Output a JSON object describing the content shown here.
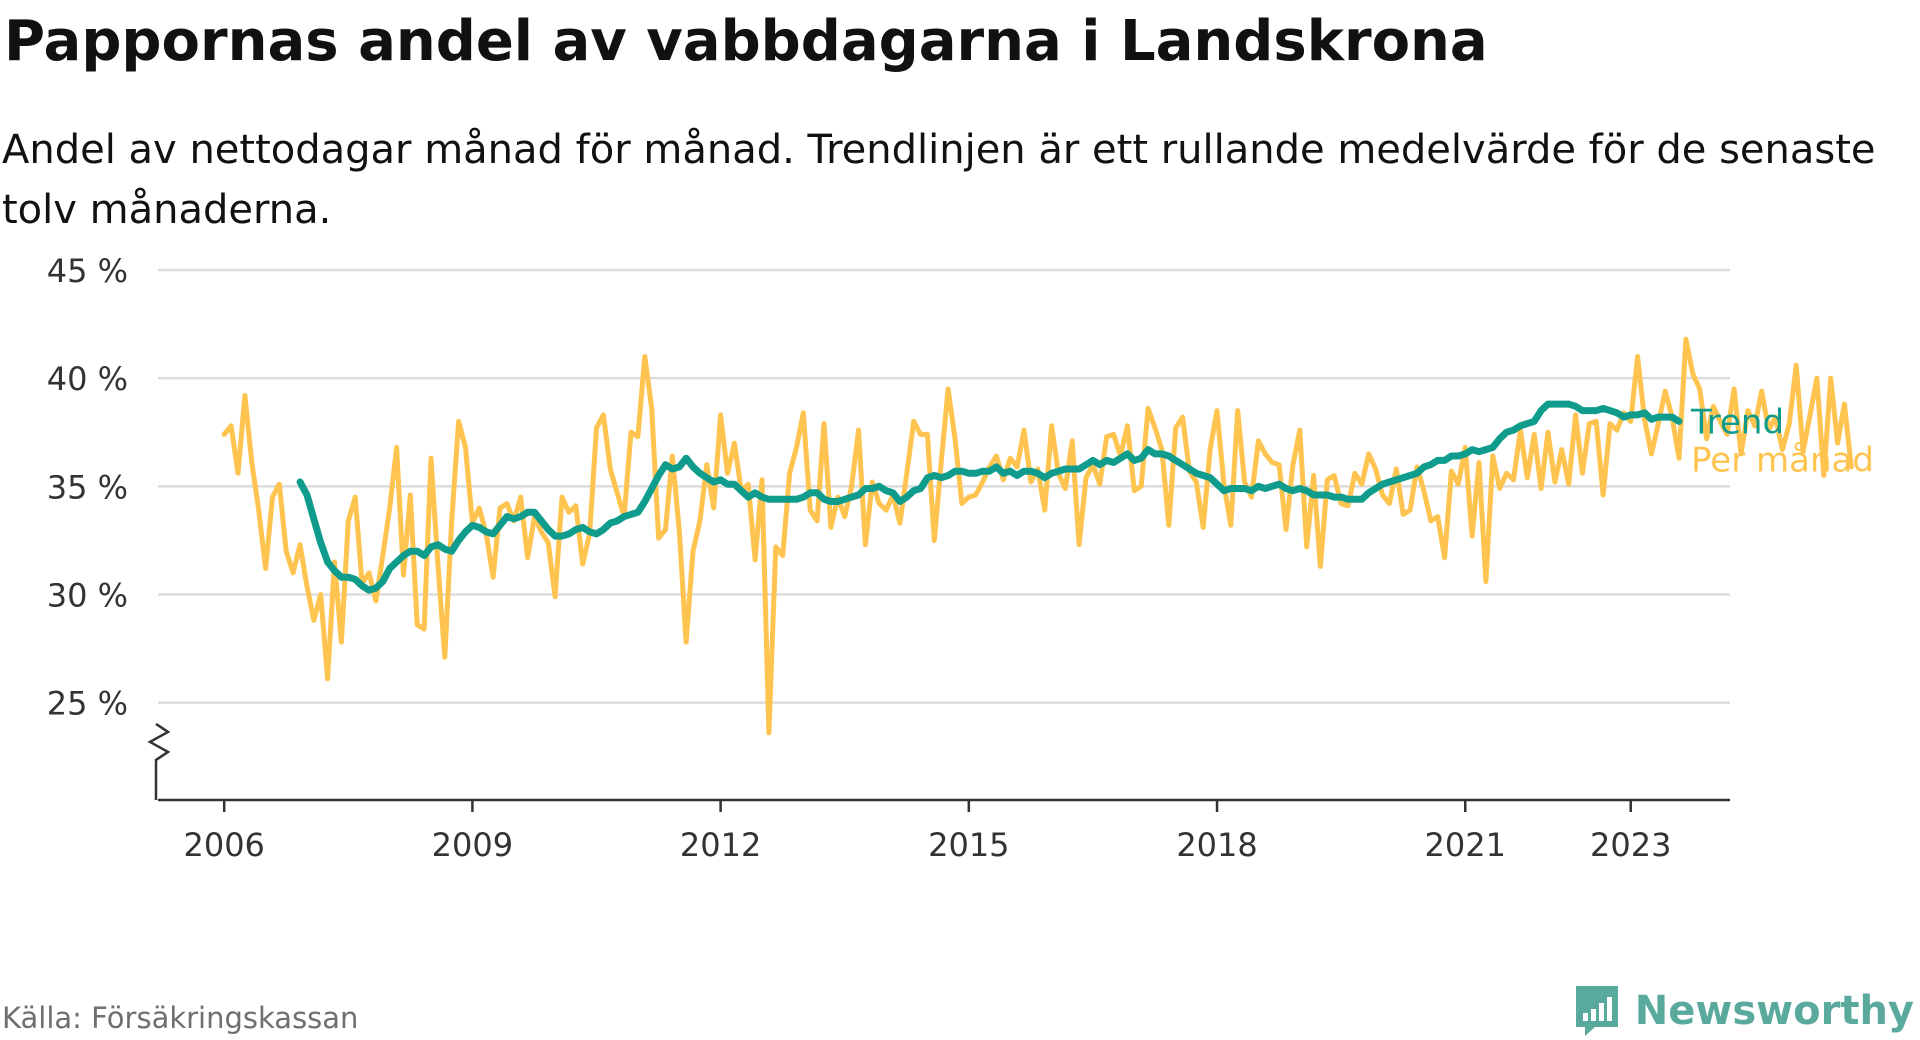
{
  "title": "Pappornas andel av vabbdagarna i Landskrona",
  "subtitle": "Andel av nettodagar månad för månad. Trendlinjen är ett rullande medelvärde för de senaste tolv månaderna.",
  "source": "Källa: Försäkringskassan",
  "brand": {
    "name": "Newsworthy",
    "icon": "bar-chart-speech-bubble-icon",
    "color": "#5aa99d"
  },
  "colors": {
    "trend": "#109c8c",
    "monthly": "#ffc44f",
    "grid": "#dddddd",
    "axis": "#333333",
    "text": "#333333"
  },
  "chart_data": {
    "type": "line",
    "x_unit": "year (decimal)",
    "ylim": [
      20.5,
      45
    ],
    "xlim": [
      2005.2,
      2024.2
    ],
    "y_ticks": [
      {
        "value": 25,
        "label": "25 %"
      },
      {
        "value": 30,
        "label": "30 %"
      },
      {
        "value": 35,
        "label": "35 %"
      },
      {
        "value": 40,
        "label": "40 %"
      },
      {
        "value": 45,
        "label": "45 %"
      }
    ],
    "x_ticks": [
      {
        "value": 2006,
        "label": "2006"
      },
      {
        "value": 2009,
        "label": "2009"
      },
      {
        "value": 2012,
        "label": "2012"
      },
      {
        "value": 2015,
        "label": "2015"
      },
      {
        "value": 2018,
        "label": "2018"
      },
      {
        "value": 2021,
        "label": "2021"
      },
      {
        "value": 2023,
        "label": "2023"
      }
    ],
    "axis_break": true,
    "grid": "horizontal",
    "legend": "end-of-line labels",
    "series": [
      {
        "name": "Per månad",
        "color": "#ffc44f",
        "x_start": 2006.0,
        "x_step": 0.083333,
        "values": [
          37.4,
          37.8,
          35.6,
          39.2,
          36.1,
          33.9,
          31.2,
          34.5,
          35.1,
          32.0,
          31.0,
          32.3,
          30.4,
          28.8,
          30.0,
          26.1,
          31.5,
          27.8,
          33.4,
          34.5,
          30.5,
          31.0,
          29.7,
          31.8,
          34.0,
          36.8,
          30.9,
          34.6,
          28.6,
          28.4,
          36.3,
          31.4,
          27.1,
          33.4,
          38.0,
          36.8,
          33.3,
          34.0,
          32.8,
          30.8,
          34.0,
          34.2,
          33.4,
          34.5,
          31.7,
          33.6,
          32.9,
          32.4,
          29.9,
          34.5,
          33.8,
          34.1,
          31.4,
          32.8,
          37.7,
          38.3,
          35.8,
          34.7,
          33.6,
          37.5,
          37.3,
          41.0,
          38.6,
          32.6,
          33.0,
          36.4,
          33.0,
          27.8,
          32.0,
          33.4,
          36.0,
          34.0,
          38.3,
          35.6,
          37.0,
          34.8,
          35.1,
          31.6,
          35.3,
          23.6,
          32.2,
          31.8,
          35.6,
          36.8,
          38.4,
          33.9,
          33.4,
          37.9,
          33.1,
          34.5,
          33.6,
          35.0,
          37.6,
          32.3,
          35.2,
          34.2,
          33.9,
          34.6,
          33.3,
          35.6,
          38.0,
          37.4,
          37.4,
          32.5,
          36.1,
          39.5,
          37.2,
          34.2,
          34.5,
          34.6,
          35.2,
          35.9,
          36.4,
          35.3,
          36.3,
          35.9,
          37.6,
          35.2,
          35.8,
          33.9,
          37.8,
          35.6,
          34.9,
          37.1,
          32.3,
          35.4,
          36.0,
          35.1,
          37.3,
          37.4,
          36.4,
          37.8,
          34.8,
          35.0,
          38.6,
          37.7,
          36.7,
          33.2,
          37.7,
          38.2,
          35.7,
          35.2,
          33.1,
          36.7,
          38.5,
          35.1,
          33.2,
          38.5,
          35.2,
          34.5,
          37.1,
          36.5,
          36.1,
          36.0,
          33.0,
          36.0,
          37.6,
          32.2,
          35.5,
          31.3,
          35.3,
          35.5,
          34.2,
          34.1,
          35.6,
          35.1,
          36.5,
          35.8,
          34.6,
          34.2,
          35.8,
          33.7,
          33.9,
          35.9,
          34.8,
          33.4,
          33.6,
          31.7,
          35.7,
          35.1,
          36.8,
          32.7,
          36.1,
          30.6,
          36.4,
          34.9,
          35.6,
          35.3,
          37.6,
          35.4,
          37.4,
          34.9,
          37.5,
          35.2,
          36.7,
          35.1,
          38.3,
          35.6,
          37.9,
          38.0,
          34.6,
          37.9,
          37.6,
          38.4,
          38.0,
          41.0,
          38.1,
          36.5,
          37.9,
          39.4,
          38.2,
          36.3,
          41.8,
          40.2,
          39.5,
          37.2,
          38.7,
          38.0,
          37.4,
          39.5,
          36.5,
          38.5,
          37.8,
          39.4,
          37.6,
          38.2,
          36.7,
          37.9,
          40.6,
          36.6,
          38.3,
          40.0,
          35.5,
          40.0,
          37.0,
          38.8,
          35.9
        ]
      },
      {
        "name": "Trend",
        "color": "#109c8c",
        "x_start": 2006.917,
        "x_step": 0.083333,
        "values": [
          35.2,
          34.6,
          33.5,
          32.4,
          31.5,
          31.1,
          30.8,
          30.8,
          30.7,
          30.4,
          30.2,
          30.3,
          30.6,
          31.2,
          31.5,
          31.8,
          32.0,
          32.0,
          31.8,
          32.2,
          32.3,
          32.1,
          32.0,
          32.5,
          32.9,
          33.2,
          33.1,
          32.9,
          32.8,
          33.2,
          33.6,
          33.5,
          33.6,
          33.8,
          33.8,
          33.4,
          33.0,
          32.7,
          32.7,
          32.8,
          33.0,
          33.1,
          32.9,
          32.8,
          33.0,
          33.3,
          33.4,
          33.6,
          33.7,
          33.8,
          34.3,
          34.9,
          35.5,
          36.0,
          35.8,
          35.9,
          36.3,
          35.9,
          35.6,
          35.4,
          35.2,
          35.3,
          35.1,
          35.1,
          34.8,
          34.5,
          34.7,
          34.5,
          34.4,
          34.4,
          34.4,
          34.4,
          34.4,
          34.5,
          34.7,
          34.7,
          34.4,
          34.3,
          34.3,
          34.4,
          34.5,
          34.6,
          34.9,
          34.9,
          35.0,
          34.8,
          34.7,
          34.3,
          34.5,
          34.8,
          34.9,
          35.4,
          35.5,
          35.4,
          35.5,
          35.7,
          35.7,
          35.6,
          35.6,
          35.7,
          35.7,
          35.9,
          35.6,
          35.7,
          35.5,
          35.7,
          35.7,
          35.6,
          35.4,
          35.6,
          35.7,
          35.8,
          35.8,
          35.8,
          36.0,
          36.2,
          36.0,
          36.2,
          36.1,
          36.3,
          36.5,
          36.2,
          36.3,
          36.7,
          36.5,
          36.5,
          36.4,
          36.2,
          36.0,
          35.8,
          35.6,
          35.5,
          35.4,
          35.1,
          34.8,
          34.9,
          34.9,
          34.9,
          34.8,
          35.0,
          34.9,
          35.0,
          35.1,
          34.9,
          34.8,
          34.9,
          34.8,
          34.6,
          34.6,
          34.6,
          34.5,
          34.5,
          34.4,
          34.4,
          34.4,
          34.7,
          34.9,
          35.1,
          35.2,
          35.3,
          35.4,
          35.5,
          35.6,
          35.9,
          36.0,
          36.2,
          36.2,
          36.4,
          36.4,
          36.5,
          36.7,
          36.6,
          36.7,
          36.8,
          37.2,
          37.5,
          37.6,
          37.8,
          37.9,
          38.0,
          38.5,
          38.8,
          38.8,
          38.8,
          38.8,
          38.7,
          38.5,
          38.5,
          38.5,
          38.6,
          38.5,
          38.4,
          38.2,
          38.3,
          38.3,
          38.4,
          38.1,
          38.2,
          38.2,
          38.2,
          38.0
        ]
      }
    ]
  }
}
